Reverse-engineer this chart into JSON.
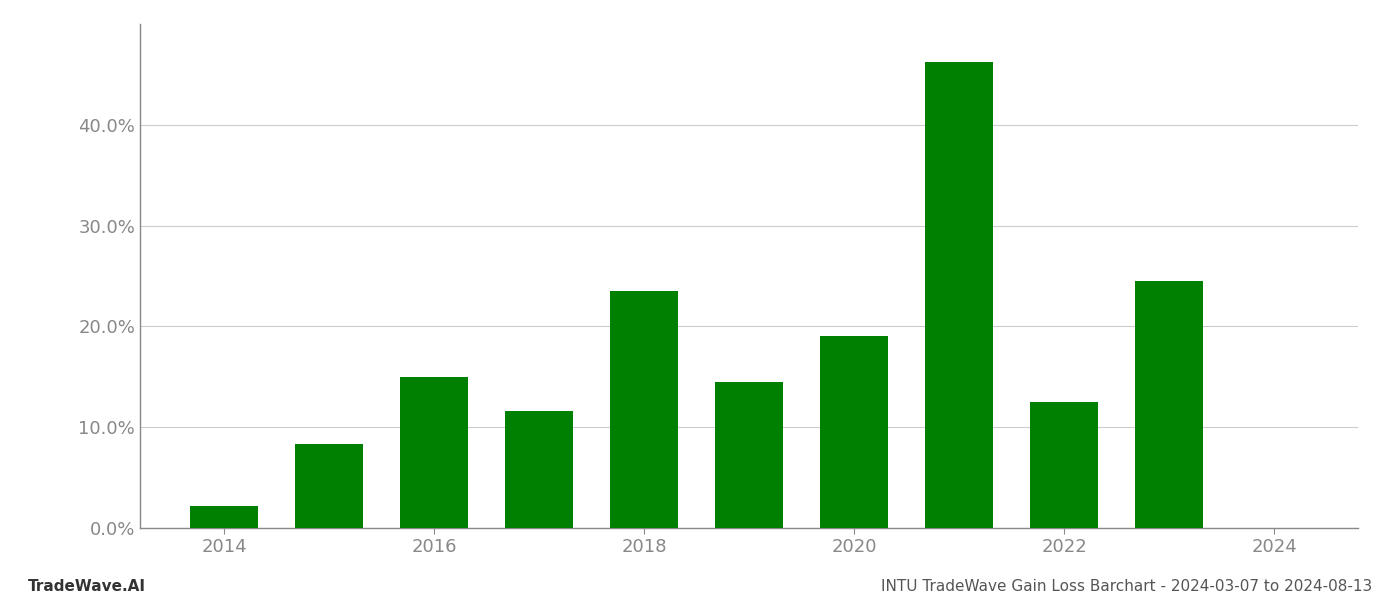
{
  "years": [
    2014,
    2015,
    2016,
    2017,
    2018,
    2019,
    2020,
    2021,
    2022,
    2023,
    2024
  ],
  "values": [
    0.022,
    0.083,
    0.15,
    0.116,
    0.235,
    0.145,
    0.19,
    0.462,
    0.125,
    0.245,
    0.0
  ],
  "bar_color": "#008000",
  "background_color": "#ffffff",
  "grid_color": "#cccccc",
  "axis_color": "#888888",
  "title_text": "INTU TradeWave Gain Loss Barchart - 2024-03-07 to 2024-08-13",
  "footer_left": "TradeWave.AI",
  "ylim": [
    0,
    0.5
  ],
  "yticks": [
    0.0,
    0.1,
    0.2,
    0.3,
    0.4
  ],
  "title_fontsize": 11,
  "footer_fontsize": 11,
  "tick_fontsize": 13,
  "bar_width": 0.65
}
